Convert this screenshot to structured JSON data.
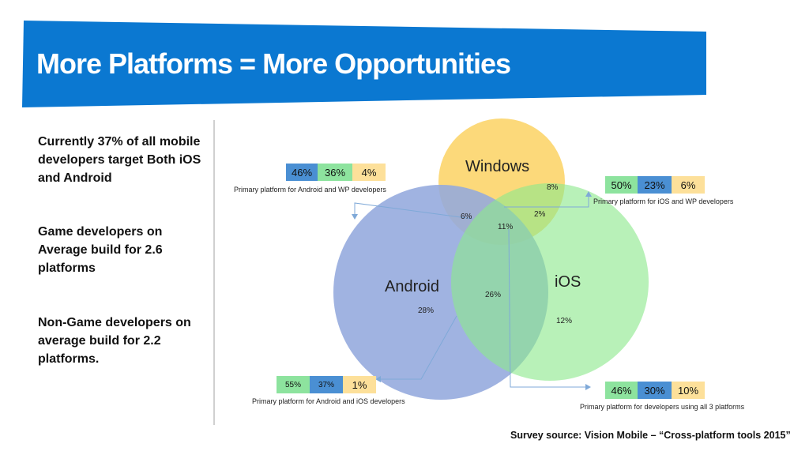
{
  "title": "More Platforms = More Opportunities",
  "left_notes": [
    "Currently 37% of all mobile developers target Both iOS and Android",
    "Game developers on Average build for 2.6 platforms",
    "Non-Game developers on average build for 2.2 platforms."
  ],
  "venn": {
    "windows": {
      "label": "Windows",
      "only": "8%"
    },
    "android": {
      "label": "Android",
      "only": "28%"
    },
    "ios": {
      "label": "iOS",
      "only": "12%"
    },
    "android_windows": "6%",
    "ios_windows": "2%",
    "all_three": "11%",
    "android_ios": "26%"
  },
  "stat_boxes": {
    "android_wp": {
      "values": [
        "46%",
        "36%",
        "4%"
      ],
      "caption": "Primary platform for Android and WP developers"
    },
    "ios_wp": {
      "values": [
        "50%",
        "23%",
        "6%"
      ],
      "caption": "Primary platform for iOS and WP developers"
    },
    "android_ios": {
      "values": [
        "55%",
        "37%",
        "1%"
      ],
      "caption": "Primary platform for Android and iOS developers"
    },
    "all_three": {
      "values": [
        "46%",
        "30%",
        "10%"
      ],
      "caption": "Primary platform for developers using all 3 platforms"
    }
  },
  "colors": {
    "banner": "#0b78d1",
    "windows": "#fcd97a",
    "android": "#93a9dd",
    "ios": "#8de88d",
    "cell_android": "#4a8fd3",
    "cell_ios": "#8de39e",
    "cell_windows": "#fde09a"
  },
  "source": "Survey source: Vision Mobile – “Cross-platform tools 2015”"
}
